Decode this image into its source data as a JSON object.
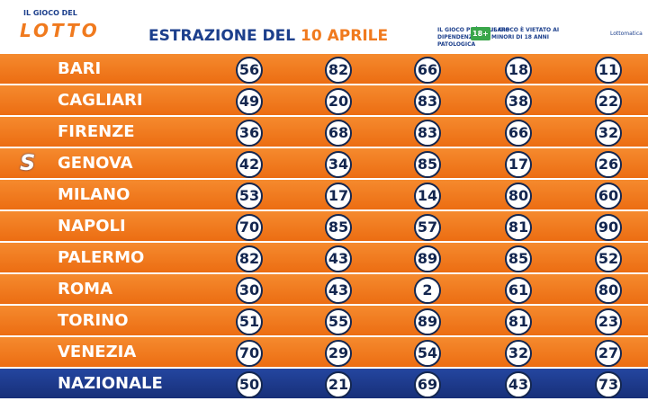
{
  "header": {
    "logo_top": "IL GIOCO DEL",
    "logo": "LOTTO",
    "title": "ESTRAZIONE DEL",
    "date": "10 APRILE",
    "warning_1": "IL GIOCO PUÒ CAUSARE DIPENDENZA PATOLOGICA",
    "badge": "18+",
    "warning_2": "IL GIOCO È VIETATO AI MINORI DI 18 ANNI",
    "brand": "Lottomatica"
  },
  "table": {
    "rows": [
      {
        "name": "BARI",
        "numbers": [
          56,
          82,
          66,
          18,
          11
        ]
      },
      {
        "name": "CAGLIARI",
        "numbers": [
          49,
          20,
          83,
          38,
          22
        ]
      },
      {
        "name": "FIRENZE",
        "numbers": [
          36,
          68,
          83,
          66,
          32
        ]
      },
      {
        "name": "GENOVA",
        "numbers": [
          42,
          34,
          85,
          17,
          26
        ]
      },
      {
        "name": "MILANO",
        "numbers": [
          53,
          17,
          14,
          80,
          60
        ]
      },
      {
        "name": "NAPOLI",
        "numbers": [
          70,
          85,
          57,
          81,
          90
        ]
      },
      {
        "name": "PALERMO",
        "numbers": [
          82,
          43,
          89,
          85,
          52
        ]
      },
      {
        "name": "ROMA",
        "numbers": [
          30,
          43,
          2,
          61,
          80
        ]
      },
      {
        "name": "TORINO",
        "numbers": [
          51,
          55,
          89,
          81,
          23
        ]
      },
      {
        "name": "VENEZIA",
        "numbers": [
          70,
          29,
          54,
          32,
          27
        ]
      },
      {
        "name": "NAZIONALE",
        "numbers": [
          50,
          21,
          69,
          43,
          73
        ]
      }
    ]
  }
}
